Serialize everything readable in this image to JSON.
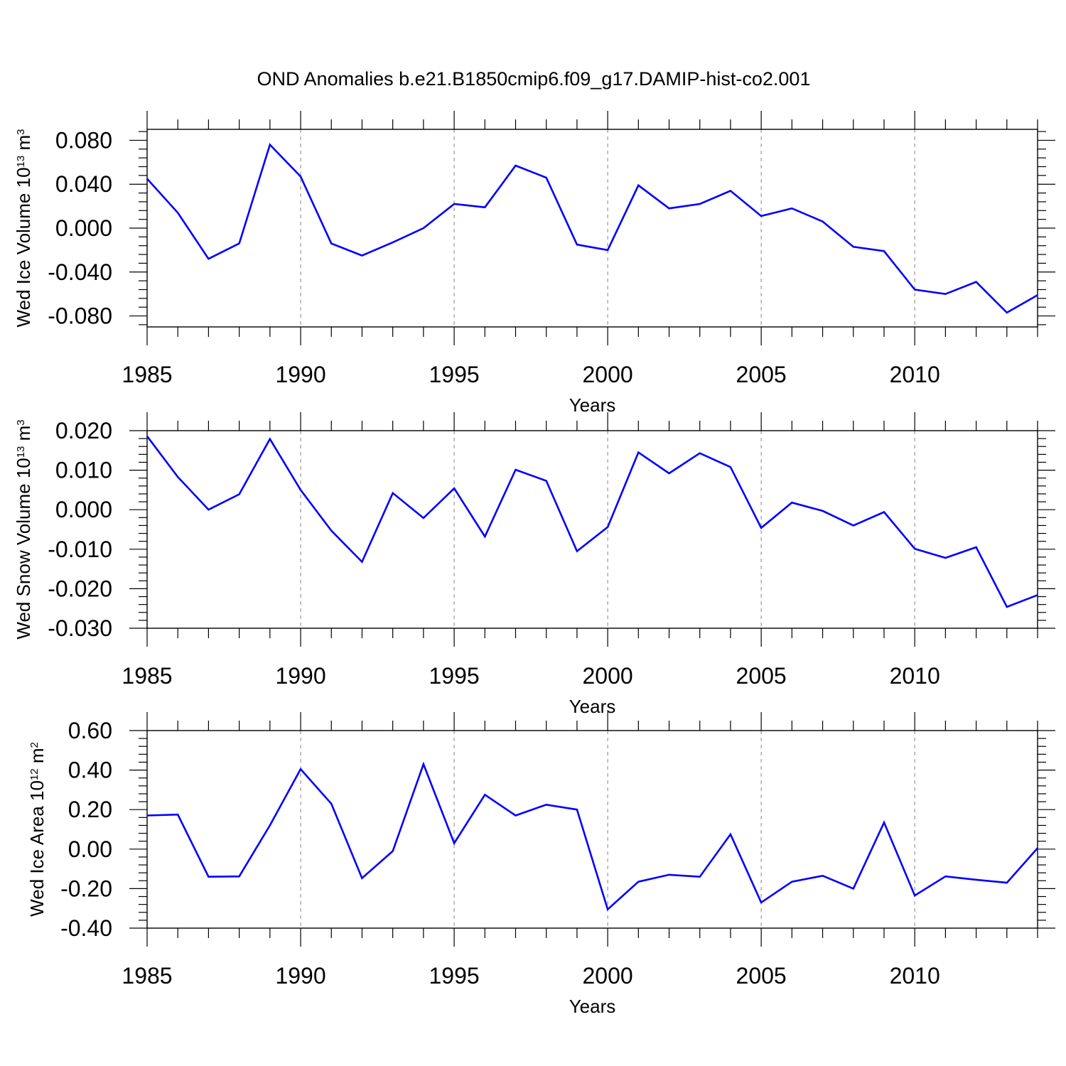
{
  "figure": {
    "title": "OND Anomalies b.e21.B1850cmip6.f09_g17.DAMIP-hist-co2.001",
    "line_color": "#0000ff",
    "grid_color": "#999999"
  },
  "chart_data": [
    {
      "type": "line",
      "xlabel": "Years",
      "ylabel": {
        "main": "Wed Ice Volume 10",
        "exp": "13",
        "unit": " m",
        "unit_exp": "3"
      },
      "xlim": [
        1985,
        2014
      ],
      "ylim": [
        -0.09,
        0.09
      ],
      "yticks": [
        -0.08,
        -0.04,
        0.0,
        0.04,
        0.08
      ],
      "ytick_labels": [
        "-0.080",
        "-0.040",
        "0.000",
        "0.040",
        "0.080"
      ],
      "xticks": [
        1985,
        1990,
        1995,
        2000,
        2005,
        2010
      ],
      "xtick_labels": [
        "1985",
        "1990",
        "1995",
        "2000",
        "2005",
        "2010"
      ],
      "grid": "vertical dashed at major x ticks",
      "x": [
        1985,
        1986,
        1987,
        1988,
        1989,
        1990,
        1991,
        1992,
        1993,
        1994,
        1995,
        1996,
        1997,
        1998,
        1999,
        2000,
        2001,
        2002,
        2003,
        2004,
        2005,
        2006,
        2007,
        2008,
        2009,
        2010,
        2011,
        2012,
        2013,
        2014
      ],
      "y": [
        0.045,
        0.014,
        -0.028,
        -0.014,
        0.076,
        0.047,
        -0.014,
        -0.025,
        -0.013,
        0.0,
        0.022,
        0.019,
        0.057,
        0.046,
        -0.015,
        -0.02,
        0.039,
        0.018,
        0.022,
        0.034,
        0.011,
        0.018,
        0.006,
        -0.017,
        -0.021,
        -0.056,
        -0.06,
        -0.049,
        -0.077,
        -0.061
      ]
    },
    {
      "type": "line",
      "xlabel": "Years",
      "ylabel": {
        "main": "Wed Snow Volume 10",
        "exp": "13",
        "unit": " m",
        "unit_exp": "3"
      },
      "xlim": [
        1985,
        2014
      ],
      "ylim": [
        -0.03,
        0.02
      ],
      "yticks": [
        -0.03,
        -0.02,
        -0.01,
        0.0,
        0.01,
        0.02
      ],
      "ytick_labels": [
        "-0.030",
        "-0.020",
        "-0.010",
        "0.000",
        "0.010",
        "0.020"
      ],
      "xticks": [
        1985,
        1990,
        1995,
        2000,
        2005,
        2010
      ],
      "xtick_labels": [
        "1985",
        "1990",
        "1995",
        "2000",
        "2005",
        "2010"
      ],
      "grid": "vertical dashed at major x ticks",
      "x": [
        1985,
        1986,
        1987,
        1988,
        1989,
        1990,
        1991,
        1992,
        1993,
        1994,
        1995,
        1996,
        1997,
        1998,
        1999,
        2000,
        2001,
        2002,
        2003,
        2004,
        2005,
        2006,
        2007,
        2008,
        2009,
        2010,
        2011,
        2012,
        2013,
        2014
      ],
      "y": [
        0.0186,
        0.0083,
        0.0,
        0.0039,
        0.0179,
        0.005,
        -0.0053,
        -0.0132,
        0.0042,
        -0.0021,
        0.0054,
        -0.0068,
        0.0101,
        0.0073,
        -0.0105,
        -0.0044,
        0.0145,
        0.0092,
        0.0143,
        0.0108,
        -0.0046,
        0.0018,
        -0.0003,
        -0.004,
        -0.0006,
        -0.0099,
        -0.0122,
        -0.0095,
        -0.0246,
        -0.0216
      ]
    },
    {
      "type": "line",
      "xlabel": "Years",
      "ylabel": {
        "main": "Wed Ice Area 10",
        "exp": "12",
        "unit": " m",
        "unit_exp": "2"
      },
      "xlim": [
        1985,
        2014
      ],
      "ylim": [
        -0.4,
        0.6
      ],
      "yticks": [
        -0.4,
        -0.2,
        0.0,
        0.2,
        0.4,
        0.6
      ],
      "ytick_labels": [
        "-0.40",
        "-0.20",
        "0.00",
        "0.20",
        "0.40",
        "0.60"
      ],
      "xticks": [
        1985,
        1990,
        1995,
        2000,
        2005,
        2010
      ],
      "xtick_labels": [
        "1985",
        "1990",
        "1995",
        "2000",
        "2005",
        "2010"
      ],
      "grid": "vertical dashed at major x ticks",
      "x": [
        1985,
        1986,
        1987,
        1988,
        1989,
        1990,
        1991,
        1992,
        1993,
        1994,
        1995,
        1996,
        1997,
        1998,
        1999,
        2000,
        2001,
        2002,
        2003,
        2004,
        2005,
        2006,
        2007,
        2008,
        2009,
        2010,
        2011,
        2012,
        2013,
        2014
      ],
      "y": [
        0.17,
        0.175,
        -0.14,
        -0.138,
        0.12,
        0.405,
        0.23,
        -0.147,
        -0.01,
        0.43,
        0.03,
        0.275,
        0.17,
        0.225,
        0.2,
        -0.305,
        -0.165,
        -0.13,
        -0.14,
        0.075,
        -0.27,
        -0.165,
        -0.135,
        -0.2,
        0.135,
        -0.235,
        -0.138,
        -0.155,
        -0.17,
        0.005
      ]
    }
  ]
}
